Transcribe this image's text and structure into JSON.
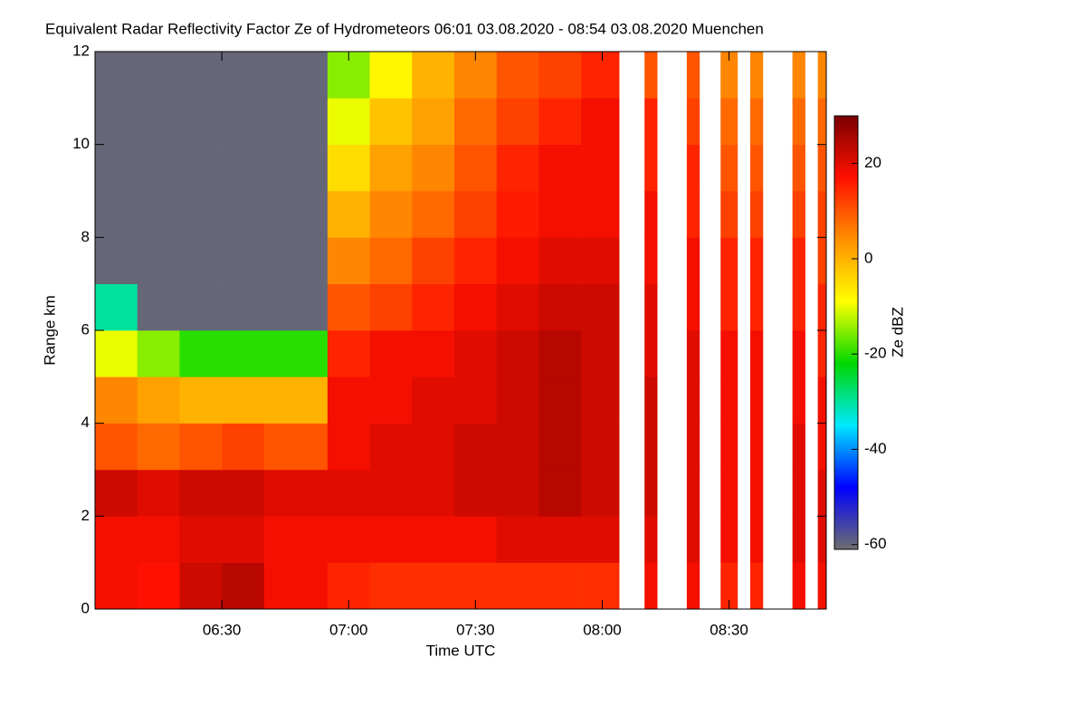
{
  "chart_data": {
    "type": "heatmap",
    "title": "Equivalent Radar Reflectivity Factor Ze of Hydrometeors   06:01 03.08.2020 - 08:54 03.08.2020 Muenchen",
    "xlabel": "Time UTC",
    "ylabel": "Range km",
    "colorbar_label": "Ze dBZ",
    "xlim": [
      360,
      533
    ],
    "xticks": [
      {
        "value": 390,
        "label": "06:30"
      },
      {
        "value": 420,
        "label": "07:00"
      },
      {
        "value": 450,
        "label": "07:30"
      },
      {
        "value": 480,
        "label": "08:00"
      },
      {
        "value": 510,
        "label": "08:30"
      }
    ],
    "ylim": [
      0,
      12
    ],
    "yticks": [
      0,
      2,
      4,
      6,
      8,
      10,
      12
    ],
    "zlim": [
      -61,
      30
    ],
    "zticks": [
      20,
      0,
      -20,
      -40,
      -60
    ],
    "colormap": [
      "#6e6e6e",
      "#0000ff",
      "#00e8ff",
      "#00d800",
      "#ffff00",
      "#ff9000",
      "#ff1000",
      "#7a0000"
    ],
    "xbins": [
      360,
      370,
      380,
      390,
      400,
      415,
      425,
      435,
      445,
      455,
      465,
      475,
      484,
      490,
      493,
      500,
      503,
      508,
      512,
      515,
      518,
      525,
      528,
      531,
      533
    ],
    "ybins": [
      0,
      1,
      2,
      3,
      4,
      5,
      6,
      7,
      8,
      9,
      10,
      11,
      12
    ],
    "values": [
      [
        18,
        17,
        22,
        24,
        18,
        15,
        14,
        14,
        14,
        14,
        14,
        14,
        null,
        18,
        null,
        18,
        null,
        15,
        null,
        15,
        null,
        18,
        null,
        18
      ],
      [
        18,
        18,
        20,
        20,
        18,
        18,
        18,
        18,
        18,
        20,
        20,
        20,
        null,
        20,
        null,
        20,
        null,
        18,
        null,
        18,
        null,
        20,
        null,
        20
      ],
      [
        22,
        20,
        22,
        22,
        20,
        20,
        20,
        20,
        22,
        22,
        24,
        22,
        null,
        22,
        null,
        20,
        null,
        18,
        null,
        18,
        null,
        20,
        null,
        20
      ],
      [
        10,
        8,
        10,
        12,
        10,
        18,
        20,
        20,
        22,
        22,
        24,
        22,
        null,
        22,
        null,
        20,
        null,
        18,
        null,
        18,
        null,
        20,
        null,
        18
      ],
      [
        5,
        2,
        0,
        0,
        0,
        18,
        18,
        20,
        20,
        22,
        24,
        22,
        null,
        22,
        null,
        20,
        null,
        18,
        null,
        18,
        null,
        18,
        null,
        18
      ],
      [
        -10,
        -15,
        -20,
        -20,
        -20,
        15,
        18,
        18,
        20,
        22,
        24,
        22,
        null,
        20,
        null,
        20,
        null,
        18,
        null,
        18,
        null,
        18,
        null,
        15
      ],
      [
        -30,
        -60,
        -60,
        -60,
        -60,
        10,
        12,
        15,
        18,
        20,
        22,
        22,
        null,
        20,
        null,
        18,
        null,
        15,
        null,
        15,
        null,
        15,
        null,
        15
      ],
      [
        -60,
        -60,
        -60,
        -60,
        -60,
        5,
        8,
        12,
        15,
        18,
        20,
        20,
        null,
        18,
        null,
        18,
        null,
        15,
        null,
        15,
        null,
        15,
        null,
        12
      ],
      [
        -60,
        -60,
        -60,
        -60,
        -60,
        0,
        5,
        8,
        12,
        16,
        18,
        18,
        null,
        18,
        null,
        15,
        null,
        12,
        null,
        12,
        null,
        12,
        null,
        12
      ],
      [
        -60,
        -60,
        -60,
        -60,
        -60,
        -5,
        2,
        5,
        10,
        15,
        18,
        18,
        null,
        15,
        null,
        15,
        null,
        10,
        null,
        10,
        null,
        10,
        null,
        10
      ],
      [
        -60,
        -60,
        -60,
        -60,
        -60,
        -10,
        -2,
        2,
        8,
        12,
        15,
        18,
        null,
        15,
        null,
        12,
        null,
        8,
        null,
        8,
        null,
        8,
        null,
        8
      ],
      [
        -60,
        -60,
        -60,
        -60,
        -60,
        -15,
        -8,
        0,
        5,
        10,
        12,
        15,
        null,
        10,
        null,
        10,
        null,
        5,
        null,
        5,
        null,
        5,
        null,
        5
      ]
    ]
  }
}
